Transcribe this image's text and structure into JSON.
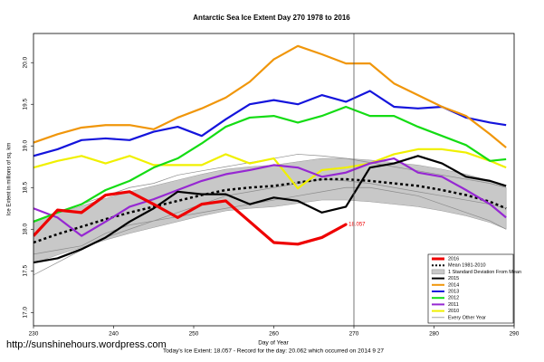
{
  "chart_data": {
    "type": "line",
    "title": "Antarctic Sea Ice Extent Day 270 1978 to 2016",
    "x_label": "Day of Year",
    "y_label": "Ice Extent in millions of sq. km",
    "footer": "Today's Ice Extent: 18.057 - Record for the day: 20.062 which occurred on 2014 9 27",
    "watermark": "http://sunshinehours.wordpress.com",
    "x": [
      230,
      233,
      236,
      239,
      242,
      245,
      248,
      251,
      254,
      257,
      260,
      263,
      266,
      269,
      272,
      275,
      278,
      281,
      284,
      287,
      289
    ],
    "xlim": [
      230,
      290
    ],
    "xticks": [
      230,
      240,
      250,
      260,
      270,
      280,
      290
    ],
    "ylim": [
      16.84,
      20.35
    ],
    "yticks": [
      {
        "value": 17,
        "label": "17.0"
      },
      {
        "value": 17.5,
        "label": "17.5"
      },
      {
        "value": 18,
        "label": "18.0"
      },
      {
        "value": 18.5,
        "label": "18.5"
      },
      {
        "value": 19,
        "label": "19.0"
      },
      {
        "value": 19.5,
        "label": "19.5"
      },
      {
        "value": 20,
        "label": "20.0"
      }
    ],
    "grid": false,
    "vline": 270,
    "legend_position": "bottom-right",
    "band": {
      "name": "1 Standard Deviation From Mean",
      "color": "#c8c8c8",
      "upper": [
        18.09,
        18.19,
        18.28,
        18.37,
        18.45,
        18.52,
        18.59,
        18.66,
        18.72,
        18.75,
        18.77,
        18.81,
        18.85,
        18.85,
        18.83,
        18.8,
        18.77,
        18.72,
        18.66,
        18.58,
        18.5
      ],
      "lower": [
        17.59,
        17.69,
        17.78,
        17.87,
        17.95,
        18.02,
        18.09,
        18.16,
        18.22,
        18.25,
        18.27,
        18.31,
        18.35,
        18.35,
        18.33,
        18.3,
        18.27,
        18.22,
        18.16,
        18.08,
        18.0
      ]
    },
    "mean": {
      "name": "Mean 1981-2010",
      "color": "#000000",
      "values": [
        17.84,
        17.94,
        18.03,
        18.12,
        18.2,
        18.27,
        18.34,
        18.41,
        18.47,
        18.5,
        18.52,
        18.56,
        18.6,
        18.6,
        18.58,
        18.55,
        18.52,
        18.47,
        18.41,
        18.33,
        18.25
      ]
    },
    "other_years": {
      "name": "Every Other Year",
      "color": "#8c8c8c",
      "lines": [
        [
          17.45,
          17.6,
          17.75,
          17.9,
          18.0,
          18.1,
          18.2,
          18.3,
          18.4,
          18.45,
          18.5,
          18.55,
          18.6,
          18.58,
          18.55,
          18.5,
          18.45,
          18.4,
          18.35,
          18.3,
          18.25
        ],
        [
          18.1,
          18.2,
          18.3,
          18.4,
          18.5,
          18.55,
          18.65,
          18.7,
          18.75,
          18.8,
          18.85,
          18.9,
          18.88,
          18.85,
          18.8,
          18.75,
          18.7,
          18.65,
          18.6,
          18.55,
          18.5
        ],
        [
          17.7,
          17.75,
          17.8,
          17.95,
          18.05,
          18.1,
          18.15,
          18.2,
          18.25,
          18.3,
          18.35,
          18.4,
          18.45,
          18.5,
          18.5,
          18.45,
          18.4,
          18.3,
          18.2,
          18.1,
          18.0
        ]
      ]
    },
    "series": [
      {
        "name": "2016",
        "color": "#ee0000",
        "values": [
          17.92,
          18.23,
          18.2,
          18.41,
          18.45,
          18.3,
          18.14,
          18.3,
          18.34,
          18.09,
          17.84,
          17.82,
          17.9,
          18.057,
          null,
          null,
          null,
          null,
          null,
          null,
          null
        ]
      },
      {
        "name": "2015",
        "color": "#000000",
        "values": [
          17.6,
          17.65,
          17.76,
          17.9,
          18.09,
          18.25,
          18.45,
          18.42,
          18.42,
          18.3,
          18.38,
          18.34,
          18.2,
          18.27,
          18.74,
          18.79,
          18.88,
          18.79,
          18.63,
          18.58,
          18.52
        ]
      },
      {
        "name": "2014",
        "color": "#f0960a",
        "values": [
          19.04,
          19.14,
          19.22,
          19.25,
          19.25,
          19.2,
          19.34,
          19.45,
          19.58,
          19.77,
          20.04,
          20.2,
          20.1,
          19.99,
          19.99,
          19.75,
          19.61,
          19.47,
          19.36,
          19.14,
          18.98
        ]
      },
      {
        "name": "2013",
        "color": "#1414dc",
        "values": [
          18.88,
          18.96,
          19.07,
          19.09,
          19.07,
          19.17,
          19.23,
          19.12,
          19.32,
          19.5,
          19.55,
          19.5,
          19.61,
          19.53,
          19.66,
          19.47,
          19.45,
          19.47,
          19.34,
          19.28,
          19.25
        ]
      },
      {
        "name": "2012",
        "color": "#14dc14",
        "values": [
          18.09,
          18.2,
          18.3,
          18.47,
          18.58,
          18.74,
          18.85,
          19.03,
          19.23,
          19.34,
          19.36,
          19.28,
          19.36,
          19.47,
          19.36,
          19.36,
          19.23,
          19.12,
          19.01,
          18.82,
          18.84
        ]
      },
      {
        "name": "2011",
        "color": "#9628d2",
        "values": [
          18.25,
          18.14,
          17.92,
          18.09,
          18.27,
          18.36,
          18.47,
          18.58,
          18.66,
          18.71,
          18.77,
          18.74,
          18.63,
          18.68,
          18.79,
          18.85,
          18.68,
          18.63,
          18.47,
          18.3,
          18.14
        ]
      },
      {
        "name": "2010",
        "color": "#f0f000",
        "values": [
          18.74,
          18.82,
          18.88,
          18.79,
          18.88,
          18.77,
          18.77,
          18.77,
          18.9,
          18.79,
          18.85,
          18.49,
          18.71,
          18.74,
          18.79,
          18.9,
          18.96,
          18.96,
          18.92,
          18.82,
          18.74
        ]
      }
    ]
  }
}
